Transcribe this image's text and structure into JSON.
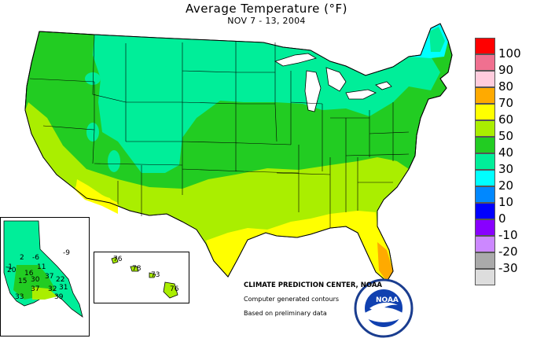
{
  "header": {
    "title": "Average Temperature (°F)",
    "subtitle": "NOV 7 - 13, 2004"
  },
  "legend": {
    "items": [
      {
        "label": "100",
        "color": "#ff0000"
      },
      {
        "label": "90",
        "color": "#f07090"
      },
      {
        "label": "80",
        "color": "#ffccdd"
      },
      {
        "label": "70",
        "color": "#ffaa00"
      },
      {
        "label": "60",
        "color": "#ffff00"
      },
      {
        "label": "50",
        "color": "#aaee00"
      },
      {
        "label": "40",
        "color": "#22cc22"
      },
      {
        "label": "30",
        "color": "#00ee99"
      },
      {
        "label": "20",
        "color": "#00ffff"
      },
      {
        "label": "10",
        "color": "#0088ff"
      },
      {
        "label": "0",
        "color": "#0000ff"
      },
      {
        "label": "-10",
        "color": "#8800ff"
      },
      {
        "label": "-20",
        "color": "#cc88ff"
      },
      {
        "label": "-30",
        "color": "#aaaaaa"
      },
      {
        "label": "",
        "color": "#dddddd"
      }
    ]
  },
  "credits": {
    "center": "CLIMATE PREDICTION CENTER, NOAA",
    "line1": "Computer generated contours",
    "line2": "Based on preliminary data",
    "noaa": "NOAA"
  },
  "alaska": {
    "values": [
      "2",
      "-6",
      "-9",
      "11",
      "16",
      "20",
      "15",
      "30",
      "37",
      "22",
      "31",
      "37",
      "32",
      "33",
      "39",
      "-1"
    ]
  },
  "hawaii": {
    "values": [
      "76",
      "78",
      "73",
      "76"
    ]
  }
}
